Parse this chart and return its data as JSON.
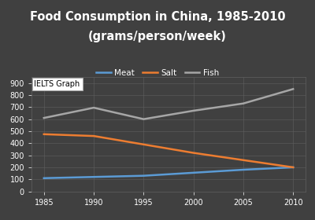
{
  "title_line1": "Food Consumption in China, 1985-2010",
  "title_line2": "(grams/person/week)",
  "years": [
    1985,
    1990,
    1995,
    2000,
    2005,
    2010
  ],
  "meat": [
    110,
    120,
    130,
    155,
    180,
    200
  ],
  "salt": [
    475,
    460,
    390,
    320,
    260,
    200
  ],
  "fish": [
    610,
    695,
    600,
    670,
    730,
    850
  ],
  "meat_color": "#5b9bd5",
  "salt_color": "#ed7d31",
  "fish_color": "#a6a6a6",
  "bg_color": "#404040",
  "plot_bg_color": "#404040",
  "text_color": "white",
  "grid_color": "#606060",
  "ylim": [
    0,
    950
  ],
  "yticks": [
    0,
    100,
    200,
    300,
    400,
    500,
    600,
    700,
    800,
    900
  ],
  "xticks": [
    1985,
    1990,
    1995,
    2000,
    2005,
    2010
  ],
  "title_fontsize": 10.5,
  "legend_fontsize": 7.5,
  "tick_fontsize": 7,
  "watermark_text": "IELTS Graph",
  "watermark_fontsize": 7,
  "line_width": 1.8
}
